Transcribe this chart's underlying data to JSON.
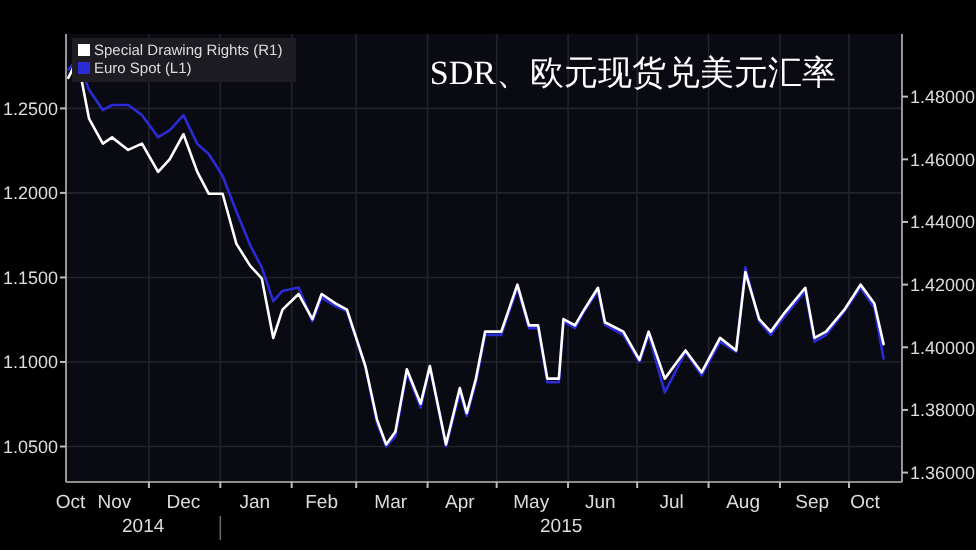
{
  "chart_data": {
    "type": "line",
    "title": "SDR、欧元现货兑美元汇率",
    "annotations": [
      "2014",
      "2015"
    ],
    "legend": "top left",
    "grid": true,
    "x": [
      "2014-10-27",
      "2014-10-31",
      "2014-11-05",
      "2014-11-11",
      "2014-11-15",
      "2014-11-22",
      "2014-11-28",
      "2014-12-05",
      "2014-12-10",
      "2014-12-16",
      "2014-12-22",
      "2014-12-27",
      "2015-01-02",
      "2015-01-08",
      "2015-01-14",
      "2015-01-19",
      "2015-01-24",
      "2015-01-28",
      "2015-02-04",
      "2015-02-10",
      "2015-02-14",
      "2015-02-20",
      "2015-02-25",
      "2015-03-05",
      "2015-03-10",
      "2015-03-14",
      "2015-03-18",
      "2015-03-23",
      "2015-03-29",
      "2015-04-02",
      "2015-04-09",
      "2015-04-15",
      "2015-04-18",
      "2015-04-22",
      "2015-04-26",
      "2015-05-03",
      "2015-05-10",
      "2015-05-15",
      "2015-05-19",
      "2015-05-23",
      "2015-05-28",
      "2015-05-30",
      "2015-06-04",
      "2015-06-08",
      "2015-06-14",
      "2015-06-17",
      "2015-06-25",
      "2015-07-02",
      "2015-07-06",
      "2015-07-13",
      "2015-07-22",
      "2015-07-29",
      "2015-08-06",
      "2015-08-13",
      "2015-08-17",
      "2015-08-23",
      "2015-08-28",
      "2015-09-03",
      "2015-09-12",
      "2015-09-16",
      "2015-09-21",
      "2015-09-29",
      "2015-10-06",
      "2015-10-12",
      "2015-10-16"
    ],
    "series": [
      {
        "name": "Special Drawing Rights (R1)",
        "color": "#ffffff",
        "axis": "y2",
        "values": [
          1.486,
          1.492,
          1.473,
          1.465,
          1.467,
          1.463,
          1.465,
          1.456,
          1.46,
          1.468,
          1.456,
          1.449,
          1.449,
          1.433,
          1.426,
          1.422,
          1.403,
          1.412,
          1.417,
          1.409,
          1.417,
          1.414,
          1.412,
          1.394,
          1.377,
          1.369,
          1.373,
          1.393,
          1.382,
          1.394,
          1.369,
          1.387,
          1.379,
          1.39,
          1.405,
          1.405,
          1.42,
          1.407,
          1.407,
          1.39,
          1.39,
          1.409,
          1.407,
          1.412,
          1.419,
          1.408,
          1.405,
          1.396,
          1.405,
          1.39,
          1.399,
          1.392,
          1.403,
          1.399,
          1.424,
          1.409,
          1.405,
          1.411,
          1.419,
          1.403,
          1.405,
          1.412,
          1.42,
          1.414,
          1.401
        ]
      },
      {
        "name": "Euro Spot (L1)",
        "color": "#2b2bd6",
        "axis": "y",
        "values": [
          1.273,
          1.279,
          1.261,
          1.249,
          1.252,
          1.252,
          1.246,
          1.233,
          1.237,
          1.246,
          1.229,
          1.223,
          1.21,
          1.189,
          1.169,
          1.156,
          1.136,
          1.142,
          1.144,
          1.124,
          1.138,
          1.133,
          1.13,
          1.097,
          1.064,
          1.05,
          1.056,
          1.094,
          1.073,
          1.097,
          1.05,
          1.082,
          1.068,
          1.088,
          1.116,
          1.116,
          1.144,
          1.12,
          1.12,
          1.088,
          1.088,
          1.124,
          1.12,
          1.13,
          1.142,
          1.122,
          1.116,
          1.1,
          1.116,
          1.082,
          1.106,
          1.092,
          1.112,
          1.106,
          1.156,
          1.124,
          1.116,
          1.127,
          1.142,
          1.112,
          1.116,
          1.13,
          1.144,
          1.132,
          1.102
        ]
      }
    ],
    "xlim": [
      "2014-10-26",
      "2015-10-24"
    ],
    "xticks": [
      {
        "value": "2014-10-28",
        "label": "Oct"
      },
      {
        "value": "2014-11-16",
        "label": "Nov"
      },
      {
        "value": "2014-12-01",
        "label": null
      },
      {
        "value": "2014-12-16",
        "label": "Dec"
      },
      {
        "value": "2015-01-01",
        "label": null
      },
      {
        "value": "2015-01-16",
        "label": "Jan"
      },
      {
        "value": "2015-02-01",
        "label": null
      },
      {
        "value": "2015-02-14",
        "label": "Feb"
      },
      {
        "value": "2015-03-01",
        "label": null
      },
      {
        "value": "2015-03-16",
        "label": "Mar"
      },
      {
        "value": "2015-04-01",
        "label": null
      },
      {
        "value": "2015-04-15",
        "label": "Apr"
      },
      {
        "value": "2015-05-01",
        "label": null
      },
      {
        "value": "2015-05-16",
        "label": "May"
      },
      {
        "value": "2015-06-01",
        "label": null
      },
      {
        "value": "2015-06-15",
        "label": "Jun"
      },
      {
        "value": "2015-07-01",
        "label": null
      },
      {
        "value": "2015-07-16",
        "label": "Jul"
      },
      {
        "value": "2015-08-01",
        "label": null
      },
      {
        "value": "2015-08-16",
        "label": "Aug"
      },
      {
        "value": "2015-09-01",
        "label": null
      },
      {
        "value": "2015-09-15",
        "label": "Sep"
      },
      {
        "value": "2015-10-01",
        "label": null
      },
      {
        "value": "2015-10-08",
        "label": "Oct"
      }
    ],
    "ylim": [
      1.029,
      1.294
    ],
    "yticks": [
      {
        "value": 1.05,
        "label": "1.0500"
      },
      {
        "value": 1.1,
        "label": "1.1000"
      },
      {
        "value": 1.15,
        "label": "1.1500"
      },
      {
        "value": 1.2,
        "label": "1.2000"
      },
      {
        "value": 1.25,
        "label": "1.2500"
      }
    ],
    "y2lim": [
      1.357,
      1.5
    ],
    "y2ticks": [
      {
        "value": 1.36,
        "label": "1.36000"
      },
      {
        "value": 1.38,
        "label": "1.38000"
      },
      {
        "value": 1.4,
        "label": "1.40000"
      },
      {
        "value": 1.42,
        "label": "1.42000"
      },
      {
        "value": 1.44,
        "label": "1.44000"
      },
      {
        "value": 1.46,
        "label": "1.46000"
      },
      {
        "value": 1.48,
        "label": "1.48000"
      }
    ]
  }
}
